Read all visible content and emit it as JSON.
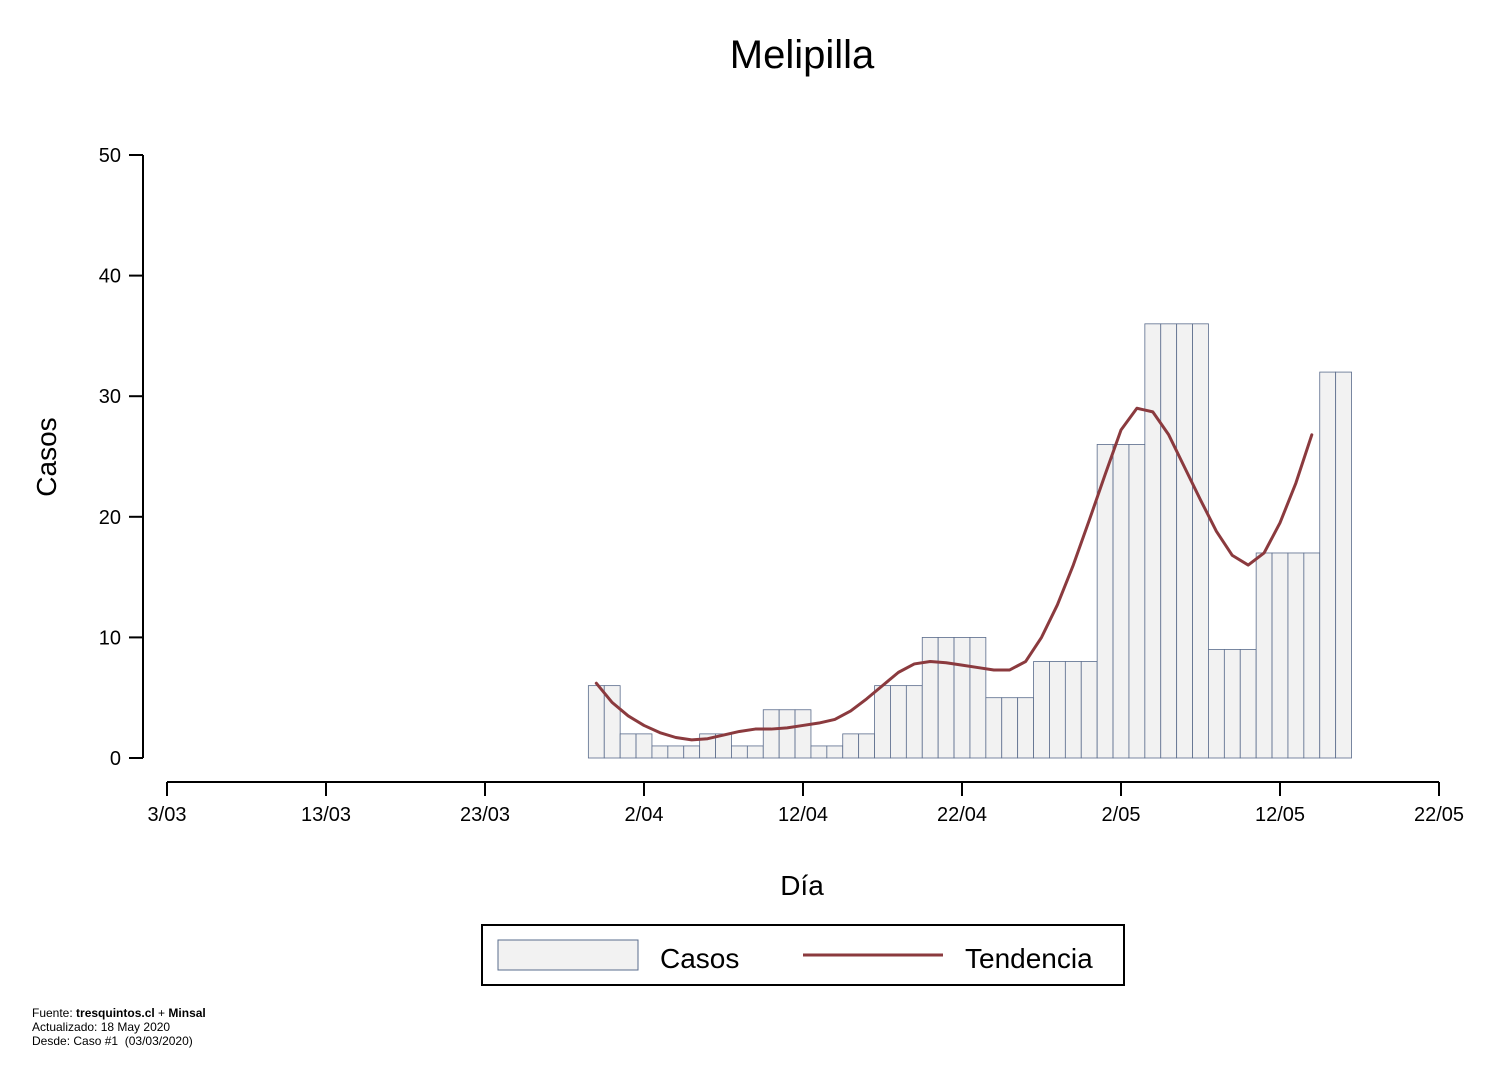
{
  "chart_data": {
    "type": "bar",
    "title": "Melipilla",
    "xlabel": "Día",
    "ylabel": "Casos",
    "ylim": [
      0,
      50
    ],
    "yticks": [
      0,
      10,
      20,
      30,
      40,
      50
    ],
    "x_tick_labels": [
      "3/03",
      "13/03",
      "23/03",
      "2/04",
      "12/04",
      "22/04",
      "2/05",
      "12/05",
      "22/05"
    ],
    "x_tick_dates": [
      "2020-03-03",
      "2020-03-13",
      "2020-03-23",
      "2020-04-02",
      "2020-04-12",
      "2020-04-22",
      "2020-05-02",
      "2020-05-12",
      "2020-05-22"
    ],
    "xlim": [
      "2020-03-03",
      "2020-05-22"
    ],
    "grid": false,
    "legend_position": "bottom",
    "colors": {
      "bar_fill": "#f2f2f2",
      "bar_stroke": "#5a6c8c",
      "line": "#8b3a3e"
    },
    "series": [
      {
        "name": "Casos",
        "type": "bar",
        "x": [
          "2020-03-30",
          "2020-03-31",
          "2020-04-01",
          "2020-04-02",
          "2020-04-03",
          "2020-04-04",
          "2020-04-05",
          "2020-04-06",
          "2020-04-07",
          "2020-04-08",
          "2020-04-09",
          "2020-04-10",
          "2020-04-11",
          "2020-04-12",
          "2020-04-13",
          "2020-04-14",
          "2020-04-15",
          "2020-04-16",
          "2020-04-17",
          "2020-04-18",
          "2020-04-19",
          "2020-04-20",
          "2020-04-21",
          "2020-04-22",
          "2020-04-23",
          "2020-04-24",
          "2020-04-25",
          "2020-04-26",
          "2020-04-27",
          "2020-04-28",
          "2020-04-29",
          "2020-04-30",
          "2020-05-01",
          "2020-05-02",
          "2020-05-03",
          "2020-05-04",
          "2020-05-05",
          "2020-05-06",
          "2020-05-07",
          "2020-05-08",
          "2020-05-09",
          "2020-05-10",
          "2020-05-11",
          "2020-05-12",
          "2020-05-13",
          "2020-05-14",
          "2020-05-15",
          "2020-05-16"
        ],
        "values": [
          6,
          6,
          2,
          2,
          1,
          1,
          1,
          2,
          2,
          1,
          1,
          4,
          4,
          4,
          1,
          1,
          2,
          2,
          6,
          6,
          6,
          10,
          10,
          10,
          10,
          5,
          5,
          5,
          8,
          8,
          8,
          8,
          26,
          26,
          26,
          36,
          36,
          36,
          36,
          9,
          9,
          9,
          17,
          17,
          17,
          17,
          32,
          32
        ]
      },
      {
        "name": "Tendencia",
        "type": "line",
        "x": [
          "2020-03-30",
          "2020-03-31",
          "2020-04-01",
          "2020-04-02",
          "2020-04-03",
          "2020-04-04",
          "2020-04-05",
          "2020-04-06",
          "2020-04-07",
          "2020-04-08",
          "2020-04-09",
          "2020-04-10",
          "2020-04-11",
          "2020-04-12",
          "2020-04-13",
          "2020-04-14",
          "2020-04-15",
          "2020-04-16",
          "2020-04-17",
          "2020-04-18",
          "2020-04-19",
          "2020-04-20",
          "2020-04-21",
          "2020-04-22",
          "2020-04-23",
          "2020-04-24",
          "2020-04-25",
          "2020-04-26",
          "2020-04-27",
          "2020-04-28",
          "2020-04-29",
          "2020-04-30",
          "2020-05-01",
          "2020-05-02",
          "2020-05-03",
          "2020-05-04",
          "2020-05-05",
          "2020-05-06",
          "2020-05-07",
          "2020-05-08",
          "2020-05-09",
          "2020-05-10",
          "2020-05-11",
          "2020-05-12",
          "2020-05-13",
          "2020-05-14",
          "2020-05-15",
          "2020-05-16"
        ],
        "values": [
          6.2,
          4.6,
          3.5,
          2.7,
          2.1,
          1.7,
          1.5,
          1.6,
          1.9,
          2.2,
          2.4,
          2.4,
          2.5,
          2.7,
          2.9,
          3.2,
          3.9,
          4.9,
          6.0,
          7.1,
          7.8,
          8.0,
          7.9,
          7.7,
          7.5,
          7.3,
          7.3,
          8.0,
          10.0,
          12.7,
          16.0,
          19.7,
          23.5,
          27.2,
          29.0,
          28.7,
          26.8,
          24.1,
          21.4,
          18.8,
          16.8,
          16.0,
          17.0,
          19.5,
          22.8,
          26.8,
          null,
          null
        ]
      }
    ]
  },
  "footer": {
    "source_prefix": "Fuente: ",
    "source_site": "tresquintos.cl",
    "source_sep": " + ",
    "source_org": "Minsal",
    "updated": "Actualizado: 18 May 2020",
    "since": "Desde: Caso #1  (03/03/2020)"
  }
}
